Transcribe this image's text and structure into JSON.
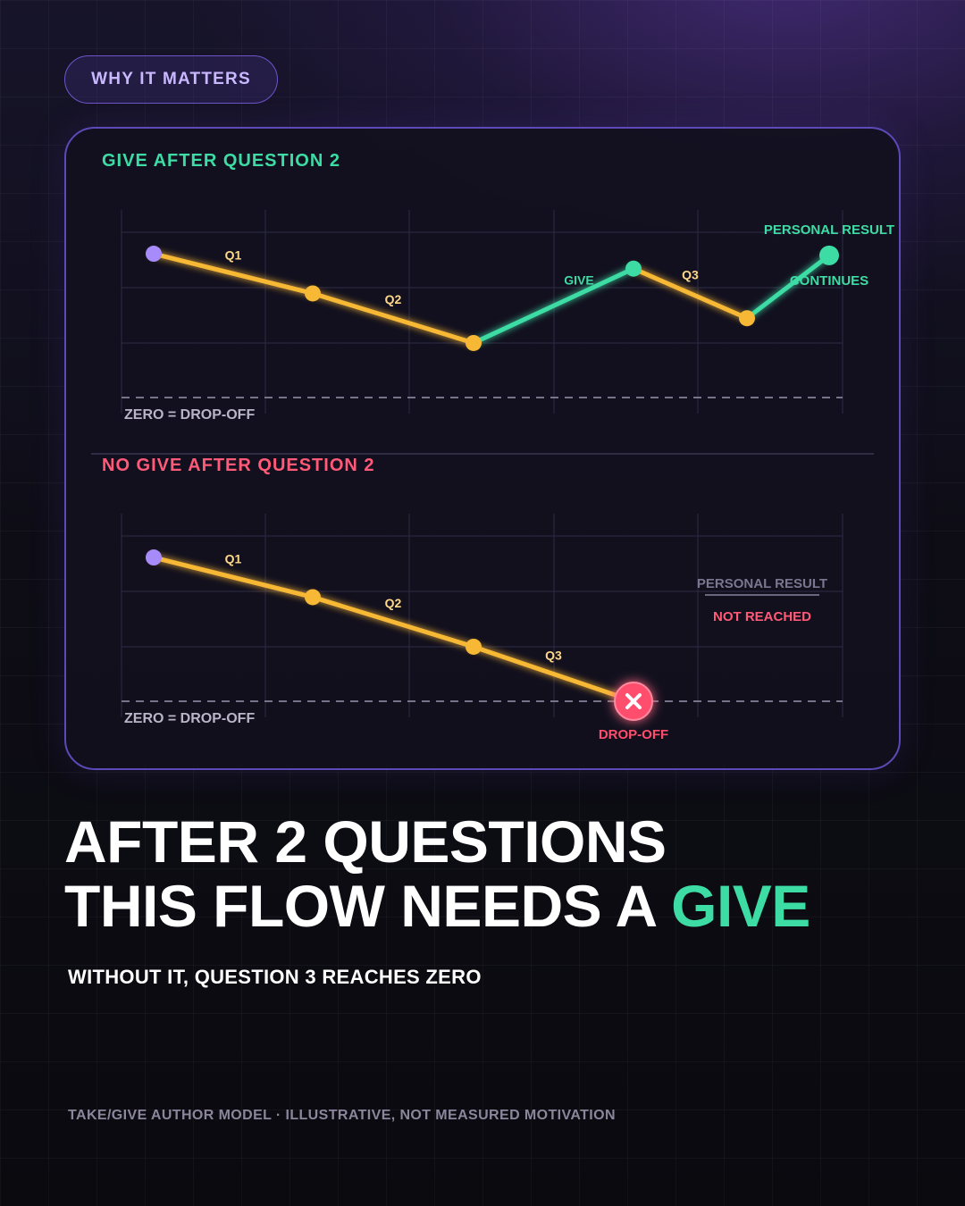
{
  "pill_label": "WHY IT MATTERS",
  "headline": {
    "line1": "AFTER 2 QUESTIONS",
    "line2_prefix": "THIS FLOW NEEDS A ",
    "line2_accent": "GIVE"
  },
  "subline": "WITHOUT IT, QUESTION 3 REACHES ZERO",
  "footnote": "TAKE/GIVE AUTHOR MODEL · ILLUSTRATIVE, NOT MEASURED MOTIVATION",
  "colors": {
    "take": "#f7b835",
    "give": "#3ddca4",
    "start": "#a78bfa",
    "dropoff": "#ff4d6d",
    "muted": "#8b869c",
    "give_title": "#3ddca4",
    "no_give_title": "#ff5a78"
  },
  "chart_data": [
    {
      "type": "line",
      "title": "GIVE AFTER QUESTION 2",
      "baseline_label": "ZERO = DROP-OFF",
      "ylim": [
        0,
        100
      ],
      "points": [
        {
          "x": 0,
          "y": 87,
          "label": "",
          "kind": "start"
        },
        {
          "x": 1,
          "y": 63,
          "label": "Q1",
          "kind": "take"
        },
        {
          "x": 2,
          "y": 33,
          "label": "Q2",
          "kind": "take"
        },
        {
          "x": 3,
          "y": 78,
          "label": "GIVE",
          "kind": "give"
        },
        {
          "x": 4,
          "y": 48,
          "label": "Q3",
          "kind": "take"
        },
        {
          "x": 5,
          "y": 86,
          "label": "PERSONAL RESULT",
          "sublabel": "CONTINUES",
          "kind": "give"
        }
      ]
    },
    {
      "type": "line",
      "title": "NO GIVE AFTER QUESTION 2",
      "baseline_label": "ZERO = DROP-OFF",
      "ylim": [
        0,
        100
      ],
      "unreached_label": "PERSONAL RESULT",
      "unreached_sublabel": "NOT REACHED",
      "points": [
        {
          "x": 0,
          "y": 87,
          "label": "",
          "kind": "start"
        },
        {
          "x": 1,
          "y": 63,
          "label": "Q1",
          "kind": "take"
        },
        {
          "x": 2,
          "y": 33,
          "label": "Q2",
          "kind": "take"
        },
        {
          "x": 3,
          "y": 0,
          "label": "Q3",
          "sublabel": "DROP-OFF",
          "kind": "dropoff"
        }
      ]
    }
  ]
}
